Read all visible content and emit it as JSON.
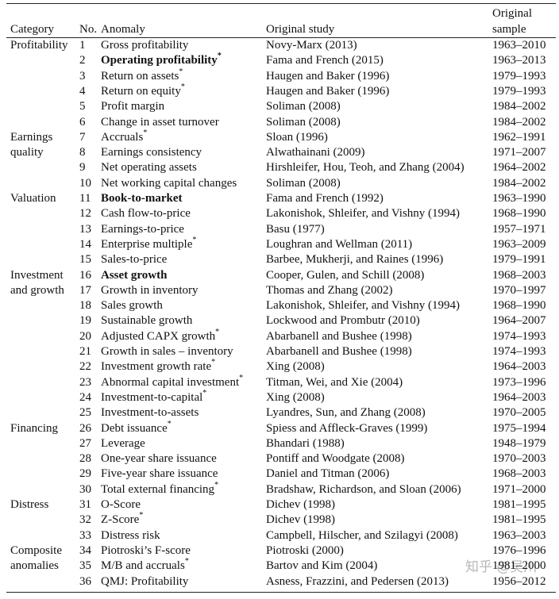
{
  "header": {
    "category": "Category",
    "no": "No.",
    "anomaly": "Anomaly",
    "study": "Original study",
    "sample": [
      "Original",
      "sample"
    ]
  },
  "groups": [
    {
      "category": [
        "Profitability"
      ],
      "rows": [
        {
          "no": 1,
          "anomaly": "Gross profitability",
          "study": "Novy-Marx (2013)",
          "sample": "1963–2010"
        },
        {
          "no": 2,
          "anomaly": "Operating profitability",
          "marker": "*",
          "bold": true,
          "study": "Fama and French (2015)",
          "sample": "1963–2013"
        },
        {
          "no": 3,
          "anomaly": "Return on assets",
          "marker": "*",
          "study": "Haugen and Baker (1996)",
          "sample": "1979–1993"
        },
        {
          "no": 4,
          "anomaly": "Return on equity",
          "marker": "*",
          "study": "Haugen and Baker (1996)",
          "sample": "1979–1993"
        },
        {
          "no": 5,
          "anomaly": "Profit margin",
          "study": "Soliman (2008)",
          "sample": "1984–2002"
        },
        {
          "no": 6,
          "anomaly": "Change in asset turnover",
          "study": "Soliman (2008)",
          "sample": "1984–2002"
        }
      ]
    },
    {
      "category": [
        "Earnings",
        "quality"
      ],
      "rows": [
        {
          "no": 7,
          "anomaly": "Accruals",
          "marker": "*",
          "study": "Sloan (1996)",
          "sample": "1962–1991"
        },
        {
          "no": 8,
          "anomaly": "Earnings consistency",
          "study": "Alwathainani (2009)",
          "sample": "1971–2007"
        },
        {
          "no": 9,
          "anomaly": "Net operating assets",
          "study": "Hirshleifer, Hou, Teoh, and Zhang (2004)",
          "sample": "1964–2002"
        },
        {
          "no": 10,
          "anomaly": "Net working capital changes",
          "study": "Soliman (2008)",
          "sample": "1984–2002"
        }
      ]
    },
    {
      "category": [
        "Valuation"
      ],
      "rows": [
        {
          "no": 11,
          "anomaly": "Book-to-market",
          "bold": true,
          "study": "Fama and French (1992)",
          "sample": "1963–1990"
        },
        {
          "no": 12,
          "anomaly": "Cash flow-to-price",
          "study": "Lakonishok, Shleifer, and Vishny (1994)",
          "sample": "1968–1990"
        },
        {
          "no": 13,
          "anomaly": "Earnings-to-price",
          "study": "Basu (1977)",
          "sample": "1957–1971"
        },
        {
          "no": 14,
          "anomaly": "Enterprise multiple",
          "marker": "*",
          "study": "Loughran and Wellman (2011)",
          "sample": "1963–2009"
        },
        {
          "no": 15,
          "anomaly": "Sales-to-price",
          "study": "Barbee, Mukherji, and Raines (1996)",
          "sample": "1979–1991"
        }
      ]
    },
    {
      "category": [
        "Investment",
        "and growth"
      ],
      "rows": [
        {
          "no": 16,
          "anomaly": "Asset growth",
          "bold": true,
          "study": "Cooper, Gulen, and Schill (2008)",
          "sample": "1968–2003"
        },
        {
          "no": 17,
          "anomaly": "Growth in inventory",
          "study": "Thomas and Zhang (2002)",
          "sample": "1970–1997"
        },
        {
          "no": 18,
          "anomaly": "Sales growth",
          "study": "Lakonishok, Shleifer, and Vishny (1994)",
          "sample": "1968–1990"
        },
        {
          "no": 19,
          "anomaly": "Sustainable growth",
          "study": "Lockwood and Prombutr (2010)",
          "sample": "1964–2007"
        },
        {
          "no": 20,
          "anomaly": "Adjusted CAPX growth",
          "marker": "*",
          "study": "Abarbanell and Bushee (1998)",
          "sample": "1974–1993"
        },
        {
          "no": 21,
          "anomaly": "Growth in sales – inventory",
          "study": "Abarbanell and Bushee (1998)",
          "sample": "1974–1993"
        },
        {
          "no": 22,
          "anomaly": "Investment growth rate",
          "marker": "*",
          "study": "Xing (2008)",
          "sample": "1964–2003"
        },
        {
          "no": 23,
          "anomaly": "Abnormal capital investment",
          "marker": "*",
          "study": "Titman, Wei, and Xie (2004)",
          "sample": "1973–1996"
        },
        {
          "no": 24,
          "anomaly": "Investment-to-capital",
          "marker": "*",
          "study": "Xing (2008)",
          "sample": "1964–2003"
        },
        {
          "no": 25,
          "anomaly": "Investment-to-assets",
          "study": "Lyandres, Sun, and Zhang (2008)",
          "sample": "1970–2005"
        }
      ]
    },
    {
      "category": [
        "Financing"
      ],
      "rows": [
        {
          "no": 26,
          "anomaly": "Debt issuance",
          "marker": "*",
          "study": "Spiess and Affleck-Graves (1999)",
          "sample": "1975–1994"
        },
        {
          "no": 27,
          "anomaly": "Leverage",
          "study": "Bhandari (1988)",
          "sample": "1948–1979"
        },
        {
          "no": 28,
          "anomaly": "One-year share issuance",
          "study": "Pontiff and Woodgate (2008)",
          "sample": "1970–2003"
        },
        {
          "no": 29,
          "anomaly": "Five-year share issuance",
          "study": "Daniel and Titman (2006)",
          "sample": "1968–2003"
        },
        {
          "no": 30,
          "anomaly": "Total external financing",
          "marker": "*",
          "study": "Bradshaw, Richardson, and Sloan (2006)",
          "sample": "1971–2000"
        }
      ]
    },
    {
      "category": [
        "Distress"
      ],
      "rows": [
        {
          "no": 31,
          "anomaly": "O-Score",
          "study": "Dichev (1998)",
          "sample": "1981–1995"
        },
        {
          "no": 32,
          "anomaly": "Z-Score",
          "marker": "*",
          "study": "Dichev (1998)",
          "sample": "1981–1995"
        },
        {
          "no": 33,
          "anomaly": "Distress risk",
          "study": "Campbell, Hilscher, and Szilagyi (2008)",
          "sample": "1963–2003"
        }
      ]
    },
    {
      "category": [
        "Composite",
        "anomalies"
      ],
      "rows": [
        {
          "no": 34,
          "anomaly": "Piotroski’s F-score",
          "study": "Piotroski (2000)",
          "sample": "1976–1996"
        },
        {
          "no": 35,
          "anomaly": "M/B and accruals",
          "marker": "*",
          "study": "Bartov and Kim (2004)",
          "sample": "1981–2000"
        },
        {
          "no": 36,
          "anomaly": "QMJ: Profitability",
          "study": "Asness, Frazzini, and Pedersen (2013)",
          "sample": "1956–2012"
        }
      ]
    }
  ],
  "watermark": "知乎 @吴川"
}
